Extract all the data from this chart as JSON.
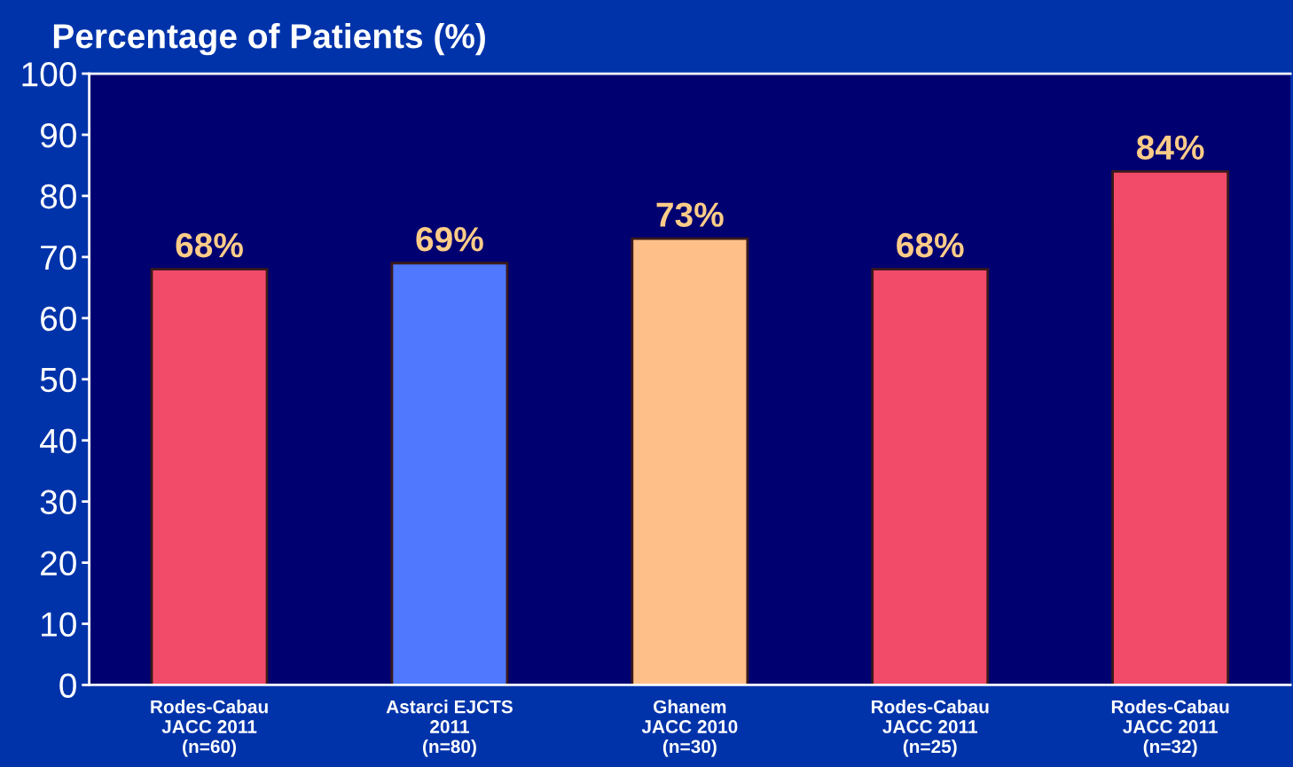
{
  "chart_data": {
    "type": "bar",
    "title": "Percentage of Patients (%)",
    "categories": [
      "Rodes-Cabau\nJACC 2011\n(n=60)",
      "Astarci EJCTS\n2011\n(n=80)",
      "Ghanem\nJACC 2010\n(n=30)",
      "Rodes-Cabau\nJACC 2011\n(n=25)",
      "Rodes-Cabau\nJACC 2011\n(n=32)"
    ],
    "values": [
      68,
      69,
      73,
      68,
      84
    ],
    "value_labels": [
      "68%",
      "69%",
      "73%",
      "68%",
      "84%"
    ],
    "colors": [
      "#f24b6a",
      "#4f78ff",
      "#ffbf88",
      "#f24b6a",
      "#f24b6a"
    ],
    "ylim": [
      0,
      100
    ],
    "yticks": [
      0,
      10,
      20,
      30,
      40,
      50,
      60,
      70,
      80,
      90,
      100
    ],
    "grid": false,
    "legend": false
  }
}
